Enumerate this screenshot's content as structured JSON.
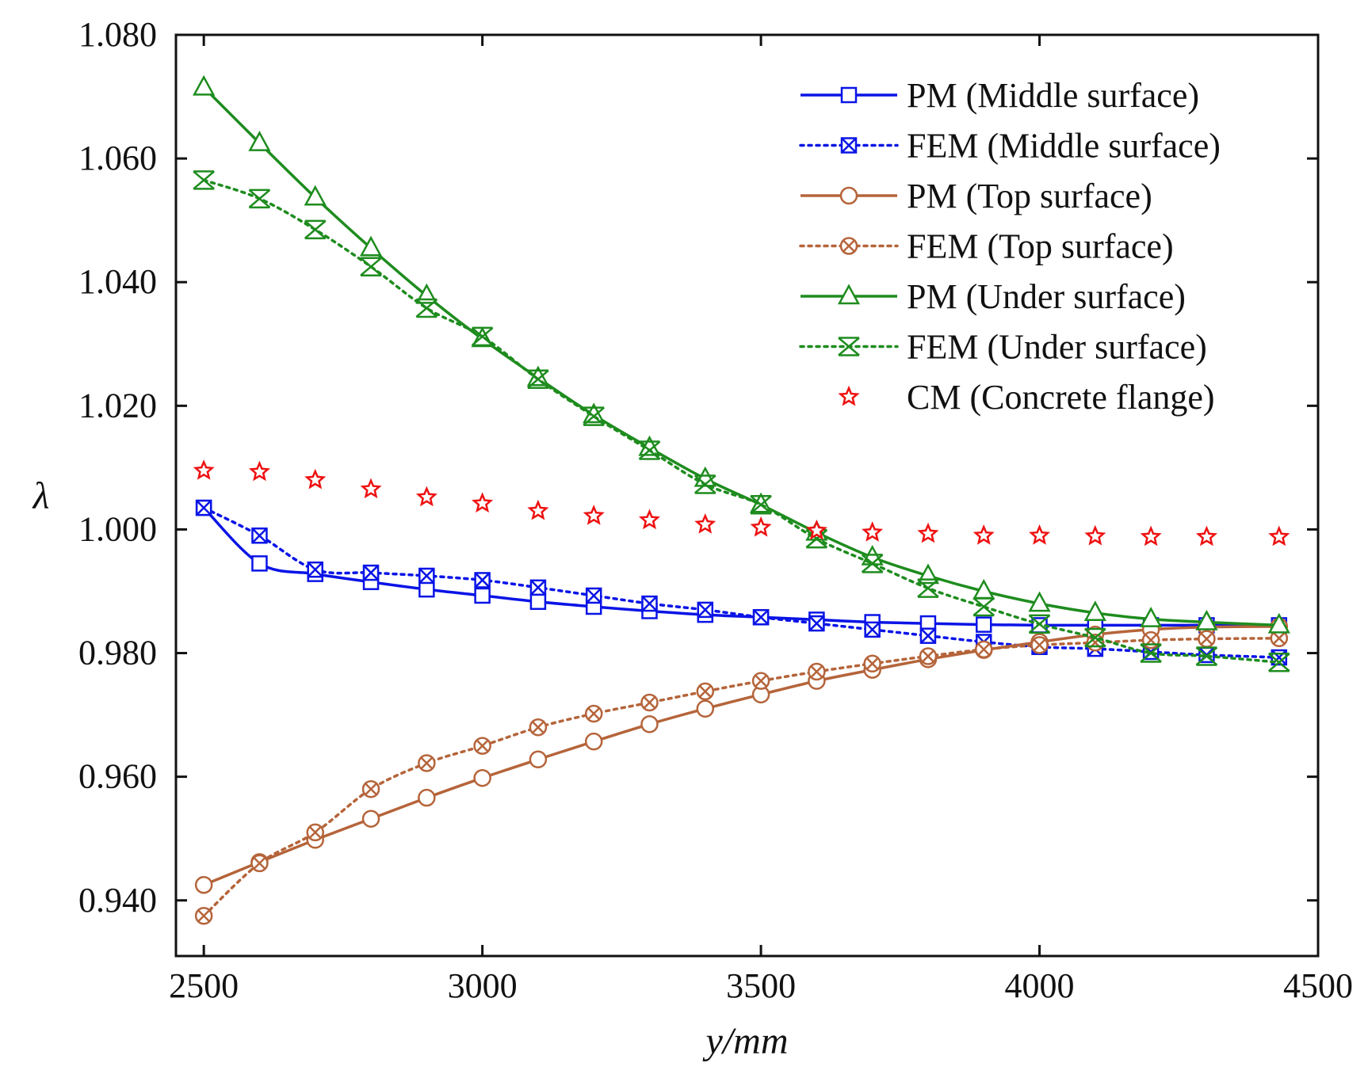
{
  "chart_data": {
    "type": "line",
    "title": "",
    "xlabel": "y/mm",
    "ylabel": "λ",
    "xlim": [
      2450,
      4500
    ],
    "ylim": [
      0.931,
      1.08
    ],
    "xticks": [
      2500,
      3000,
      3500,
      4000,
      4500
    ],
    "xtick_labels": [
      "2500",
      "3000",
      "3500",
      "4000",
      "4500"
    ],
    "yticks": [
      0.94,
      0.96,
      0.98,
      1.0,
      1.02,
      1.04,
      1.06,
      1.08
    ],
    "ytick_labels": [
      "0.940",
      "0.960",
      "0.980",
      "1.000",
      "1.020",
      "1.040",
      "1.060",
      "1.080"
    ],
    "grid": false,
    "legend_position": "top-right",
    "x": [
      2500,
      2600,
      2700,
      2800,
      2900,
      3000,
      3100,
      3200,
      3300,
      3400,
      3500,
      3600,
      3700,
      3800,
      3900,
      4000,
      4100,
      4200,
      4300,
      4430
    ],
    "series": [
      {
        "name": "PM (Middle surface)",
        "color": "#0a14e6",
        "line": "solid",
        "marker": "square",
        "values": [
          1.0035,
          0.9945,
          0.9928,
          0.9915,
          0.9903,
          0.9893,
          0.9883,
          0.9875,
          0.9868,
          0.9862,
          0.9858,
          0.9854,
          0.985,
          0.9848,
          0.9846,
          0.9845,
          0.9845,
          0.9845,
          0.9845,
          0.9845
        ]
      },
      {
        "name": "FEM (Middle surface)",
        "color": "#0a14e6",
        "line": "dotted",
        "marker": "boxx",
        "values": [
          1.0035,
          0.999,
          0.9935,
          0.993,
          0.9925,
          0.9918,
          0.9906,
          0.9893,
          0.988,
          0.987,
          0.9858,
          0.9848,
          0.9838,
          0.9828,
          0.9818,
          0.981,
          0.9807,
          0.9802,
          0.9797,
          0.9793
        ]
      },
      {
        "name": "PM (Top surface)",
        "color": "#b5643a",
        "line": "solid",
        "marker": "circle",
        "values": [
          0.9425,
          0.9462,
          0.9498,
          0.9532,
          0.9566,
          0.9598,
          0.9628,
          0.9657,
          0.9685,
          0.971,
          0.9733,
          0.9755,
          0.9773,
          0.979,
          0.9805,
          0.9818,
          0.983,
          0.9838,
          0.9842,
          0.9843
        ]
      },
      {
        "name": "FEM (Top surface)",
        "color": "#b5643a",
        "line": "dotted",
        "marker": "circlex",
        "values": [
          0.9375,
          0.946,
          0.951,
          0.958,
          0.9622,
          0.965,
          0.968,
          0.9702,
          0.972,
          0.9738,
          0.9755,
          0.977,
          0.9783,
          0.9795,
          0.9806,
          0.9813,
          0.9817,
          0.9821,
          0.9823,
          0.9824
        ]
      },
      {
        "name": "PM (Under surface)",
        "color": "#1e8c1e",
        "line": "solid",
        "marker": "triangle",
        "values": [
          1.0715,
          1.0625,
          1.0537,
          1.0455,
          1.0378,
          1.0308,
          1.0245,
          1.0185,
          1.0132,
          1.0082,
          1.004,
          0.9995,
          0.9955,
          0.9925,
          0.99,
          0.988,
          0.9865,
          0.9855,
          0.985,
          0.9845
        ]
      },
      {
        "name": "FEM (Under surface)",
        "color": "#1e8c1e",
        "line": "dotted",
        "marker": "crossx",
        "values": [
          1.0565,
          1.0535,
          1.0485,
          1.0425,
          1.0358,
          1.0312,
          1.0243,
          1.0183,
          1.0128,
          1.0073,
          1.004,
          0.9985,
          0.9945,
          0.9905,
          0.9875,
          0.9847,
          0.9825,
          0.98,
          0.9795,
          0.9785
        ]
      },
      {
        "name": "CM (Concrete flange)",
        "color": "#ee1111",
        "line": "none",
        "marker": "star",
        "values": [
          1.0095,
          1.0093,
          1.008,
          1.0065,
          1.0052,
          1.0042,
          1.003,
          1.0022,
          1.0015,
          1.0008,
          1.0003,
          0.9998,
          0.9995,
          0.9993,
          0.999,
          0.999,
          0.9989,
          0.9988,
          0.9988,
          0.9988
        ]
      }
    ]
  }
}
